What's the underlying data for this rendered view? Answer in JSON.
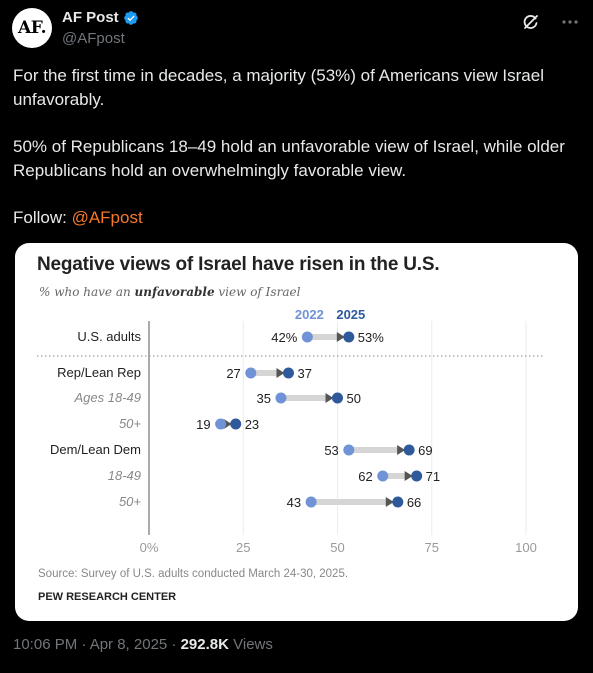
{
  "author": {
    "avatar_text": "AF.",
    "name": "AF Post",
    "handle": "@AFpost"
  },
  "tweet": {
    "p1": "For the first time in decades, a majority (53%) of Americans view Israel unfavorably.",
    "p2": "50% of Republicans 18–49 hold an unfavorable view of Israel, while older Republicans hold an overwhelmingly favorable view.",
    "p3_prefix": "Follow: ",
    "p3_link": "@AFpost"
  },
  "chart": {
    "title": "Negative views of Israel have risen in the U.S.",
    "subtitle_pre": "% who have an ",
    "subtitle_bold": "unfavorable",
    "subtitle_post": " view of Israel",
    "source": "Source: Survey of U.S. adults conducted March 24-30, 2025.",
    "credit": "PEW RESEARCH CENTER"
  },
  "chart_data": {
    "type": "dot",
    "series": [
      {
        "name": "2022",
        "color": "#6f93d6"
      },
      {
        "name": "2025",
        "color": "#2e5a9c"
      }
    ],
    "categories": [
      "U.S. adults",
      "Rep/Lean Rep",
      "Ages 18-49",
      "50+",
      "Dem/Lean Dem",
      "18-49",
      "50+"
    ],
    "rows": [
      {
        "label": "U.S. adults",
        "italic": false,
        "v2022": 42,
        "v2025": 53,
        "pct": true
      },
      {
        "label": "Rep/Lean Rep",
        "italic": false,
        "v2022": 27,
        "v2025": 37,
        "pct": false
      },
      {
        "label": "Ages 18-49",
        "italic": true,
        "v2022": 35,
        "v2025": 50,
        "pct": false
      },
      {
        "label": "50+",
        "italic": true,
        "v2022": 19,
        "v2025": 23,
        "pct": false
      },
      {
        "label": "Dem/Lean Dem",
        "italic": false,
        "v2022": 53,
        "v2025": 69,
        "pct": false
      },
      {
        "label": "18-49",
        "italic": true,
        "v2022": 62,
        "v2025": 71,
        "pct": false
      },
      {
        "label": "50+",
        "italic": true,
        "v2022": 43,
        "v2025": 66,
        "pct": false
      }
    ],
    "x_ticks": [
      "0%",
      "25",
      "50",
      "75",
      "100"
    ],
    "xlim": [
      0,
      100
    ]
  },
  "footer": {
    "time": "10:06 PM · Apr 8, 2025 · ",
    "views_count": "292.8K",
    "views_label": " Views"
  },
  "colors": {
    "c2022": "#6f93d6",
    "c2025": "#2e5a9c",
    "arrow": "#d5d5d5",
    "link": "#f4792a"
  }
}
